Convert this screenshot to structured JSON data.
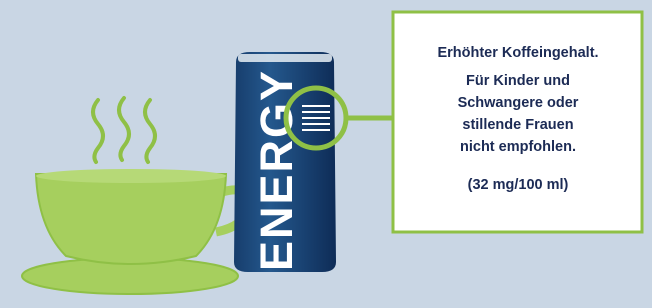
{
  "can": {
    "label": "ENERGY"
  },
  "note": {
    "lines": [
      "Erhöhter Koffeingehalt.",
      "Für Kinder und",
      "Schwangere oder",
      "stillende Frauen",
      "nicht empfohlen.",
      "(32 mg/100 ml)"
    ]
  }
}
